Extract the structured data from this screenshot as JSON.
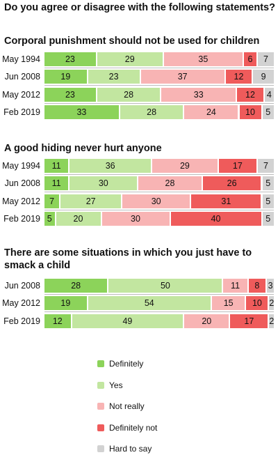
{
  "title": "Do you agree or disagree with the following statements?",
  "colors": {
    "definitely": "#8cd35a",
    "yes": "#c2e6a0",
    "not_really": "#f8b4b4",
    "definitely_not": "#ef5b5b",
    "hard_to_say": "#d2d2d2"
  },
  "legend": [
    {
      "key": "definitely",
      "label": "Definitely"
    },
    {
      "key": "yes",
      "label": "Yes"
    },
    {
      "key": "not_really",
      "label": "Not really"
    },
    {
      "key": "definitely_not",
      "label": "Definitely not"
    },
    {
      "key": "hard_to_say",
      "label": "Hard to say"
    }
  ],
  "chart_data": [
    {
      "type": "bar",
      "stacked": true,
      "orientation": "horizontal",
      "title": "Corporal punishment should not be used for children",
      "categories": [
        "May 1994",
        "Jun 2008",
        "May 2012",
        "Feb 2019"
      ],
      "series": [
        {
          "name": "Definitely",
          "values": [
            23,
            19,
            23,
            33
          ]
        },
        {
          "name": "Yes",
          "values": [
            29,
            23,
            28,
            28
          ]
        },
        {
          "name": "Not really",
          "values": [
            35,
            37,
            33,
            24
          ]
        },
        {
          "name": "Definitely not",
          "values": [
            6,
            12,
            12,
            10
          ]
        },
        {
          "name": "Hard to say",
          "values": [
            7,
            9,
            4,
            5
          ]
        }
      ]
    },
    {
      "type": "bar",
      "stacked": true,
      "orientation": "horizontal",
      "title": "A good hiding never hurt anyone",
      "categories": [
        "May 1994",
        "Jun 2008",
        "May 2012",
        "Feb 2019"
      ],
      "series": [
        {
          "name": "Definitely",
          "values": [
            11,
            11,
            7,
            5
          ]
        },
        {
          "name": "Yes",
          "values": [
            36,
            30,
            27,
            20
          ]
        },
        {
          "name": "Not really",
          "values": [
            29,
            28,
            30,
            30
          ]
        },
        {
          "name": "Definitely not",
          "values": [
            17,
            26,
            31,
            40
          ]
        },
        {
          "name": "Hard to say",
          "values": [
            7,
            5,
            5,
            5
          ]
        }
      ]
    },
    {
      "type": "bar",
      "stacked": true,
      "orientation": "horizontal",
      "title": "There are some situations in which you just have to smack a child",
      "categories": [
        "Jun 2008",
        "May 2012",
        "Feb 2019"
      ],
      "series": [
        {
          "name": "Definitely",
          "values": [
            28,
            19,
            12
          ]
        },
        {
          "name": "Yes",
          "values": [
            50,
            54,
            49
          ]
        },
        {
          "name": "Not really",
          "values": [
            11,
            15,
            20
          ]
        },
        {
          "name": "Definitely not",
          "values": [
            8,
            10,
            17
          ]
        },
        {
          "name": "Hard to say",
          "values": [
            3,
            2,
            2
          ]
        }
      ]
    }
  ]
}
